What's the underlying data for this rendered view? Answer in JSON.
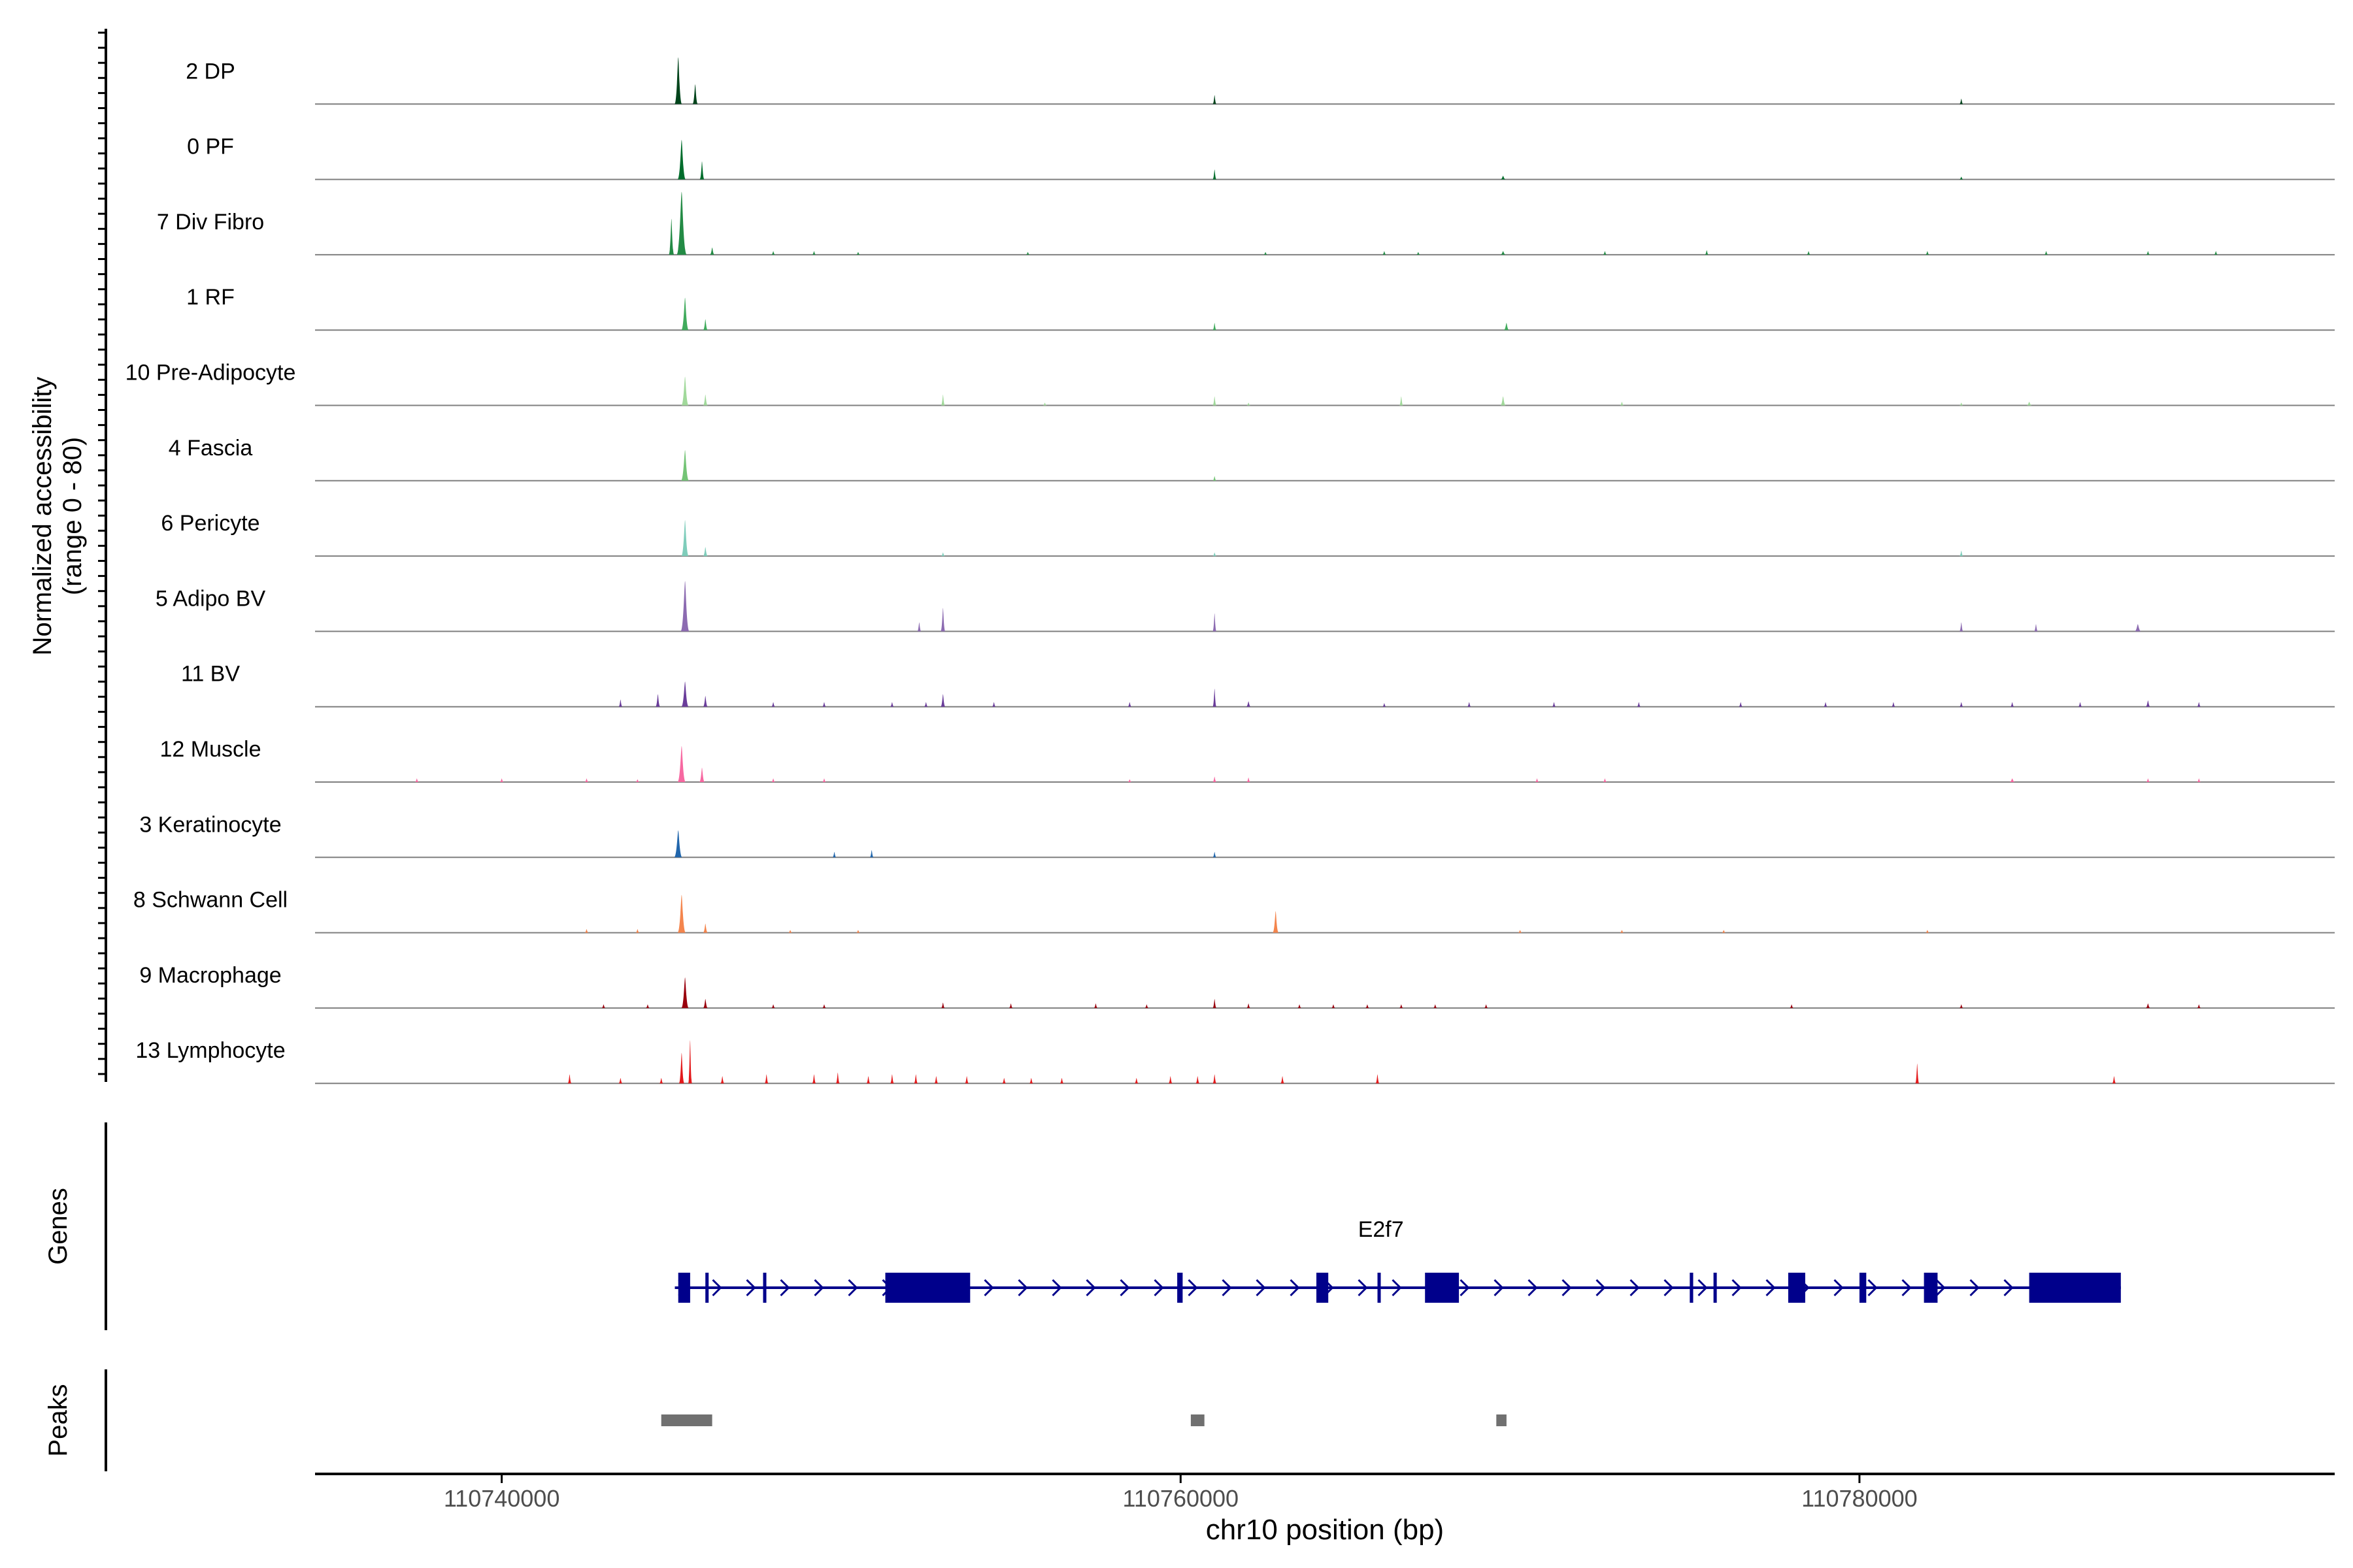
{
  "chart_data": {
    "type": "area",
    "title": "",
    "chromosome": "chr10",
    "xlabel": "chr10 position (bp)",
    "ylabel_line1": "Normalized accessibility",
    "ylabel_line2": "(range 0 - 80)",
    "yrange": [
      0,
      80
    ],
    "xlim": [
      110734500,
      110794000
    ],
    "x_ticks": [
      110740000,
      110760000,
      110780000
    ],
    "x_tick_labels": [
      "110740000",
      "110760000",
      "110780000"
    ],
    "tracks": [
      {
        "name": "2 DP",
        "color": "#00441b",
        "peaks": [
          [
            110745200,
            52,
            220
          ],
          [
            110745700,
            22,
            160
          ],
          [
            110761000,
            10,
            90
          ],
          [
            110783000,
            6,
            90
          ]
        ]
      },
      {
        "name": "0 PF",
        "color": "#006d2c",
        "peaks": [
          [
            110745300,
            44,
            240
          ],
          [
            110745900,
            20,
            140
          ],
          [
            110761000,
            11,
            90
          ],
          [
            110769500,
            4,
            160
          ],
          [
            110783000,
            3,
            90
          ]
        ]
      },
      {
        "name": "7 Div Fibro",
        "color": "#238b45",
        "peaks": [
          [
            110745300,
            70,
            300
          ],
          [
            110745000,
            40,
            160
          ],
          [
            110746200,
            8,
            140
          ],
          [
            110748000,
            4,
            110
          ],
          [
            110749200,
            4,
            110
          ],
          [
            110750500,
            3,
            110
          ],
          [
            110755500,
            3,
            110
          ],
          [
            110762500,
            3,
            110
          ],
          [
            110766000,
            4,
            110
          ],
          [
            110767000,
            3,
            110
          ],
          [
            110769500,
            4,
            160
          ],
          [
            110772500,
            4,
            110
          ],
          [
            110775500,
            5,
            110
          ],
          [
            110778500,
            4,
            110
          ],
          [
            110782000,
            4,
            110
          ],
          [
            110785500,
            4,
            110
          ],
          [
            110788500,
            4,
            110
          ],
          [
            110790500,
            4,
            110
          ]
        ]
      },
      {
        "name": "1 RF",
        "color": "#41ab5d",
        "peaks": [
          [
            110745400,
            36,
            220
          ],
          [
            110746000,
            12,
            140
          ],
          [
            110761000,
            8,
            90
          ],
          [
            110769600,
            8,
            160
          ]
        ]
      },
      {
        "name": "10 Pre-Adipocyte",
        "color": "#a1d99b",
        "peaks": [
          [
            110745400,
            32,
            220
          ],
          [
            110746000,
            12,
            140
          ],
          [
            110753000,
            12,
            120
          ],
          [
            110756000,
            3,
            110
          ],
          [
            110761000,
            10,
            90
          ],
          [
            110762000,
            3,
            110
          ],
          [
            110766500,
            10,
            110
          ],
          [
            110769500,
            10,
            160
          ],
          [
            110773000,
            4,
            110
          ],
          [
            110783000,
            3,
            90
          ],
          [
            110785000,
            4,
            160
          ]
        ]
      },
      {
        "name": "4 Fascia",
        "color": "#74c476",
        "peaks": [
          [
            110745400,
            34,
            240
          ],
          [
            110761000,
            5,
            90
          ]
        ]
      },
      {
        "name": "6 Pericyte",
        "color": "#7fcdbb",
        "peaks": [
          [
            110745400,
            40,
            220
          ],
          [
            110746000,
            10,
            140
          ],
          [
            110753000,
            4,
            110
          ],
          [
            110761000,
            4,
            90
          ],
          [
            110783000,
            6,
            90
          ]
        ]
      },
      {
        "name": "5 Adipo BV",
        "color": "#8c6bb1",
        "peaks": [
          [
            110745400,
            56,
            260
          ],
          [
            110752300,
            10,
            120
          ],
          [
            110753000,
            26,
            140
          ],
          [
            110761000,
            20,
            90
          ],
          [
            110783000,
            10,
            90
          ],
          [
            110785200,
            8,
            110
          ],
          [
            110788200,
            8,
            200
          ]
        ]
      },
      {
        "name": "11 BV",
        "color": "#6a3d9a",
        "peaks": [
          [
            110745400,
            28,
            220
          ],
          [
            110744600,
            14,
            140
          ],
          [
            110746000,
            12,
            140
          ],
          [
            110743500,
            8,
            110
          ],
          [
            110748000,
            5,
            110
          ],
          [
            110749500,
            5,
            110
          ],
          [
            110751500,
            5,
            110
          ],
          [
            110752500,
            5,
            110
          ],
          [
            110753000,
            14,
            140
          ],
          [
            110754500,
            5,
            110
          ],
          [
            110758500,
            5,
            110
          ],
          [
            110761000,
            20,
            90
          ],
          [
            110762000,
            6,
            140
          ],
          [
            110766000,
            4,
            110
          ],
          [
            110768500,
            5,
            110
          ],
          [
            110771000,
            5,
            110
          ],
          [
            110773500,
            5,
            110
          ],
          [
            110776500,
            5,
            110
          ],
          [
            110779000,
            5,
            110
          ],
          [
            110781000,
            5,
            110
          ],
          [
            110783000,
            5,
            110
          ],
          [
            110784500,
            5,
            110
          ],
          [
            110786500,
            5,
            110
          ],
          [
            110788500,
            7,
            140
          ],
          [
            110790000,
            5,
            110
          ]
        ]
      },
      {
        "name": "12 Muscle",
        "color": "#f768a1",
        "peaks": [
          [
            110745300,
            40,
            240
          ],
          [
            110745900,
            16,
            160
          ],
          [
            110737500,
            4,
            110
          ],
          [
            110740000,
            4,
            110
          ],
          [
            110742500,
            4,
            110
          ],
          [
            110744000,
            3,
            110
          ],
          [
            110748000,
            4,
            110
          ],
          [
            110749500,
            4,
            110
          ],
          [
            110758500,
            3,
            110
          ],
          [
            110761000,
            6,
            90
          ],
          [
            110762000,
            5,
            110
          ],
          [
            110770500,
            4,
            110
          ],
          [
            110772500,
            4,
            110
          ],
          [
            110784500,
            4,
            160
          ],
          [
            110788500,
            4,
            110
          ],
          [
            110790000,
            4,
            110
          ]
        ]
      },
      {
        "name": "3 Keratinocyte",
        "color": "#2166ac",
        "peaks": [
          [
            110745200,
            30,
            240
          ],
          [
            110749800,
            6,
            110
          ],
          [
            110750900,
            8,
            110
          ],
          [
            110761000,
            6,
            90
          ]
        ]
      },
      {
        "name": "8 Schwann Cell",
        "color": "#f4854d",
        "peaks": [
          [
            110745300,
            42,
            240
          ],
          [
            110746000,
            10,
            140
          ],
          [
            110742500,
            4,
            110
          ],
          [
            110744000,
            4,
            110
          ],
          [
            110748500,
            3,
            110
          ],
          [
            110750500,
            3,
            110
          ],
          [
            110762800,
            24,
            180
          ],
          [
            110770000,
            3,
            110
          ],
          [
            110773000,
            3,
            110
          ],
          [
            110776000,
            3,
            110
          ],
          [
            110782000,
            3,
            110
          ]
        ]
      },
      {
        "name": "9 Macrophage",
        "color": "#99000d",
        "peaks": [
          [
            110745400,
            34,
            220
          ],
          [
            110746000,
            10,
            140
          ],
          [
            110743000,
            4,
            110
          ],
          [
            110744300,
            4,
            110
          ],
          [
            110748000,
            4,
            110
          ],
          [
            110749500,
            4,
            110
          ],
          [
            110753000,
            6,
            110
          ],
          [
            110755000,
            5,
            110
          ],
          [
            110757500,
            5,
            110
          ],
          [
            110759000,
            4,
            110
          ],
          [
            110761000,
            10,
            90
          ],
          [
            110762000,
            5,
            110
          ],
          [
            110763500,
            4,
            110
          ],
          [
            110764500,
            4,
            110
          ],
          [
            110765500,
            4,
            110
          ],
          [
            110766500,
            4,
            110
          ],
          [
            110767500,
            4,
            110
          ],
          [
            110769000,
            4,
            110
          ],
          [
            110778000,
            4,
            110
          ],
          [
            110783000,
            4,
            110
          ],
          [
            110788500,
            5,
            140
          ],
          [
            110790000,
            4,
            110
          ]
        ]
      },
      {
        "name": "13 Lymphocyte",
        "color": "#e31a1c",
        "peaks": [
          [
            110745300,
            34,
            160
          ],
          [
            110745550,
            48,
            90
          ],
          [
            110742000,
            10,
            100
          ],
          [
            110743500,
            6,
            100
          ],
          [
            110744700,
            6,
            100
          ],
          [
            110746500,
            8,
            100
          ],
          [
            110747800,
            10,
            100
          ],
          [
            110749200,
            10,
            100
          ],
          [
            110749900,
            12,
            100
          ],
          [
            110750800,
            8,
            100
          ],
          [
            110751500,
            10,
            100
          ],
          [
            110752200,
            10,
            100
          ],
          [
            110752800,
            8,
            100
          ],
          [
            110753700,
            8,
            100
          ],
          [
            110754800,
            6,
            100
          ],
          [
            110755600,
            6,
            100
          ],
          [
            110756500,
            6,
            100
          ],
          [
            110758700,
            6,
            100
          ],
          [
            110759700,
            8,
            100
          ],
          [
            110760500,
            8,
            100
          ],
          [
            110761000,
            10,
            100
          ],
          [
            110763000,
            8,
            100
          ],
          [
            110765800,
            10,
            100
          ],
          [
            110781700,
            22,
            100
          ],
          [
            110787500,
            8,
            100
          ]
        ]
      }
    ],
    "genes": [
      {
        "name": "E2f7",
        "line_from": 110745100,
        "line_to": 110787700,
        "strand": "+",
        "exons": [
          [
            110745200,
            110745550
          ],
          [
            110746000,
            110746080
          ],
          [
            110747700,
            110747760
          ],
          [
            110751300,
            110753800
          ],
          [
            110759900,
            110760060
          ],
          [
            110764000,
            110764350
          ],
          [
            110765800,
            110765880
          ],
          [
            110767200,
            110768200
          ],
          [
            110775000,
            110775100
          ],
          [
            110775700,
            110775760
          ],
          [
            110777900,
            110778400
          ],
          [
            110780000,
            110780200
          ],
          [
            110781900,
            110782300
          ],
          [
            110785000,
            110787700
          ]
        ]
      }
    ],
    "peaks_track": [
      [
        110744700,
        110746200
      ],
      [
        110760300,
        110760700
      ],
      [
        110769300,
        110769600
      ]
    ]
  },
  "labels": {
    "genes_panel": "Genes",
    "peaks_panel": "Peaks"
  }
}
